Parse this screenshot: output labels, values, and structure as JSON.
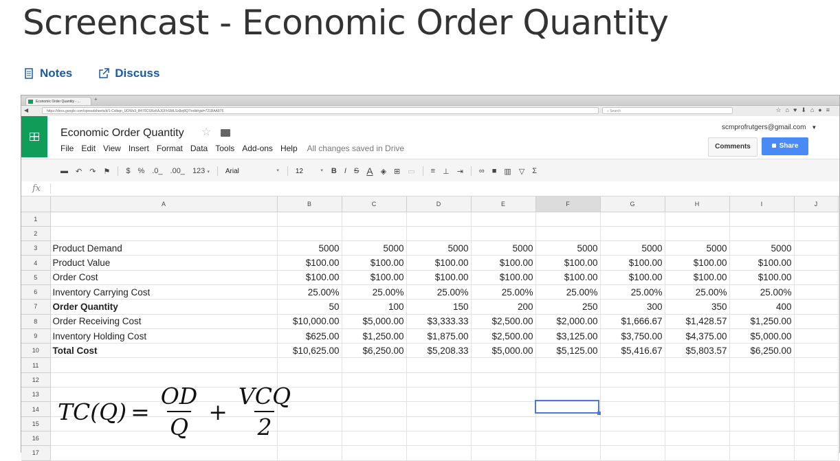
{
  "page": {
    "title": "Screencast - Economic Order Quantity",
    "links": [
      {
        "label": "Notes",
        "icon": "notes-icon"
      },
      {
        "label": "Discuss",
        "icon": "external-link-icon"
      }
    ],
    "accent": "#1a5aa6"
  },
  "browser": {
    "tab_title": "Economic Order Quantity - ...",
    "url": "https://docs.google.com/spreadsheets/d/1-Cxlbqn_UOWs3_B470CSRzKAJGFhSMLSx8ej8Q7/edit#gid=721BAA876",
    "search_placeholder": "Search"
  },
  "app": {
    "doc_title": "Economic Order Quantity",
    "menu": [
      "File",
      "Edit",
      "View",
      "Insert",
      "Format",
      "Data",
      "Tools",
      "Add-ons",
      "Help"
    ],
    "save_status": "All changes saved in Drive",
    "account": "scmprofrutgers@gmail.com",
    "comments_label": "Comments",
    "share_label": "Share",
    "share_color": "#4a8af4",
    "brand_color": "#0f9d58"
  },
  "toolbar": {
    "currency": "$",
    "percent": "%",
    "dec_less": ".0_",
    "dec_more": ".00_",
    "more_formats": "123",
    "font": "Arial",
    "size": "12",
    "bold": "B",
    "italic": "I",
    "strike": "S",
    "text_color": "A",
    "sum": "Σ"
  },
  "formula_bar": {
    "fx": "fx"
  },
  "sheet": {
    "columns": [
      "A",
      "B",
      "C",
      "D",
      "E",
      "F",
      "G",
      "H",
      "I",
      "J"
    ],
    "selected_column": "F",
    "row_numbers": [
      "1",
      "2",
      "3",
      "4",
      "5",
      "6",
      "7",
      "8",
      "9",
      "10",
      "11",
      "12",
      "13",
      "14",
      "15",
      "16",
      "17"
    ],
    "rows": [
      {
        "label": "",
        "bold": false,
        "values": [
          "",
          "",
          "",
          "",
          "",
          "",
          "",
          ""
        ]
      },
      {
        "label": "",
        "bold": false,
        "values": [
          "",
          "",
          "",
          "",
          "",
          "",
          "",
          ""
        ]
      },
      {
        "label": "Product Demand",
        "bold": false,
        "values": [
          "5000",
          "5000",
          "5000",
          "5000",
          "5000",
          "5000",
          "5000",
          "5000"
        ]
      },
      {
        "label": "Product Value",
        "bold": false,
        "values": [
          "$100.00",
          "$100.00",
          "$100.00",
          "$100.00",
          "$100.00",
          "$100.00",
          "$100.00",
          "$100.00"
        ]
      },
      {
        "label": "Order Cost",
        "bold": false,
        "values": [
          "$100.00",
          "$100.00",
          "$100.00",
          "$100.00",
          "$100.00",
          "$100.00",
          "$100.00",
          "$100.00"
        ]
      },
      {
        "label": "Inventory Carrying Cost",
        "bold": false,
        "values": [
          "25.00%",
          "25.00%",
          "25.00%",
          "25.00%",
          "25.00%",
          "25.00%",
          "25.00%",
          "25.00%"
        ]
      },
      {
        "label": "Order Quantity",
        "bold": true,
        "values": [
          "50",
          "100",
          "150",
          "200",
          "250",
          "300",
          "350",
          "400"
        ]
      },
      {
        "label": "Order Receiving Cost",
        "bold": false,
        "values": [
          "$10,000.00",
          "$5,000.00",
          "$3,333.33",
          "$2,500.00",
          "$2,000.00",
          "$1,666.67",
          "$1,428.57",
          "$1,250.00"
        ]
      },
      {
        "label": "Inventory Holding Cost",
        "bold": false,
        "values": [
          "$625.00",
          "$1,250.00",
          "$1,875.00",
          "$2,500.00",
          "$3,125.00",
          "$3,750.00",
          "$4,375.00",
          "$5,000.00"
        ]
      },
      {
        "label": "Total Cost",
        "bold": true,
        "values": [
          "$10,625.00",
          "$6,250.00",
          "$5,208.33",
          "$5,000.00",
          "$5,125.00",
          "$5,416.67",
          "$5,803.57",
          "$6,250.00"
        ]
      }
    ]
  },
  "formula": {
    "lhs": "TC(Q)",
    "equals": "=",
    "frac1_num": "OD",
    "frac1_den": "Q",
    "plus": "+",
    "frac2_num": "VCQ",
    "frac2_den": "2"
  }
}
